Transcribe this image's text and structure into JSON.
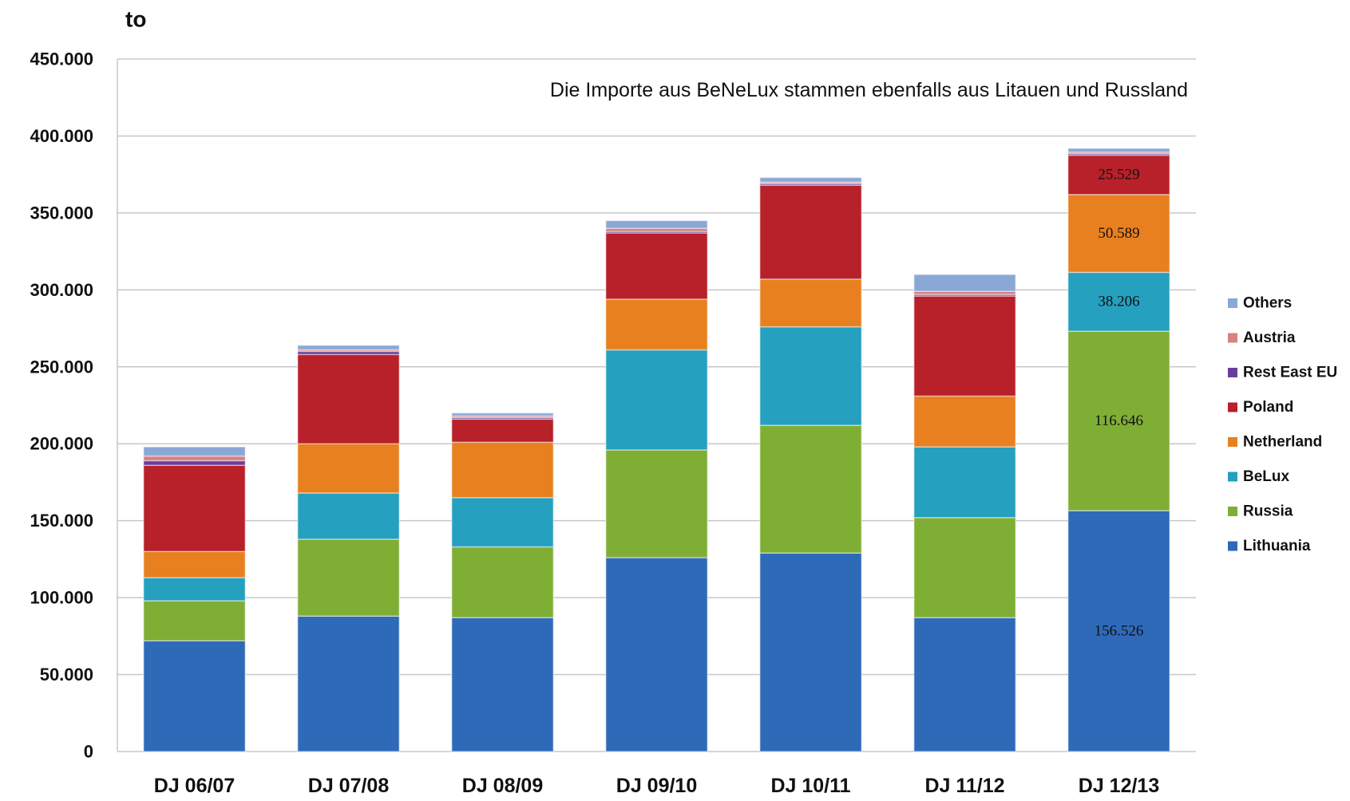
{
  "chart_data": {
    "type": "stacked_bar",
    "y_axis_label": "to",
    "annotation": "Die Importe aus BeNeLux stammen ebenfalls aus Litauen und Russland",
    "categories": [
      "DJ 06/07",
      "DJ 07/08",
      "DJ 08/09",
      "DJ 09/10",
      "DJ 10/11",
      "DJ 11/12",
      "DJ 12/13"
    ],
    "series": [
      {
        "name": "Lithuania",
        "color": "#2e6ab8",
        "values": [
          72000,
          88000,
          87000,
          126000,
          129000,
          87000,
          156526
        ],
        "value_labels": [
          null,
          null,
          null,
          null,
          null,
          null,
          "156.526"
        ]
      },
      {
        "name": "Russia",
        "color": "#7fae35",
        "values": [
          26000,
          50000,
          46000,
          70000,
          83000,
          65000,
          116646
        ],
        "value_labels": [
          null,
          null,
          null,
          null,
          null,
          null,
          "116.646"
        ]
      },
      {
        "name": "BeLux",
        "color": "#25a0bf",
        "values": [
          15000,
          30000,
          32000,
          65000,
          64000,
          46000,
          38206
        ],
        "value_labels": [
          null,
          null,
          null,
          null,
          null,
          null,
          "38.206"
        ]
      },
      {
        "name": "Netherland",
        "color": "#e8801f",
        "values": [
          17000,
          32000,
          36000,
          33000,
          31000,
          33000,
          50589
        ],
        "value_labels": [
          null,
          null,
          null,
          null,
          null,
          null,
          "50.589"
        ]
      },
      {
        "name": "Poland",
        "color": "#b8202a",
        "values": [
          56000,
          58000,
          15000,
          43000,
          61000,
          65000,
          25529
        ],
        "value_labels": [
          null,
          null,
          null,
          null,
          null,
          null,
          "25.529"
        ]
      },
      {
        "name": "Rest East EU",
        "color": "#6a3d9a",
        "values": [
          3000,
          2000,
          1000,
          1000,
          1000,
          1000,
          1000
        ]
      },
      {
        "name": "Austria",
        "color": "#d98080",
        "values": [
          3000,
          1000,
          1000,
          2000,
          1000,
          2000,
          1000
        ]
      },
      {
        "name": "Others",
        "color": "#8aa8d6",
        "values": [
          6000,
          3000,
          2000,
          5000,
          3000,
          11000,
          2500
        ]
      }
    ],
    "ylim": [
      0,
      450000
    ],
    "yticks": [
      0,
      {
        "value": 50000,
        "label": "50.000"
      },
      {
        "value": 100000,
        "label": "100.000"
      },
      {
        "value": 150000,
        "label": "150.000"
      },
      {
        "value": 200000,
        "label": "200.000"
      },
      {
        "value": 250000,
        "label": "250.000"
      },
      {
        "value": 300000,
        "label": "300.000"
      },
      {
        "value": 350000,
        "label": "350.000"
      },
      {
        "value": 400000,
        "label": "400.000"
      },
      {
        "value": 450000,
        "label": "450.000"
      }
    ],
    "grid": true,
    "legend": "right"
  }
}
